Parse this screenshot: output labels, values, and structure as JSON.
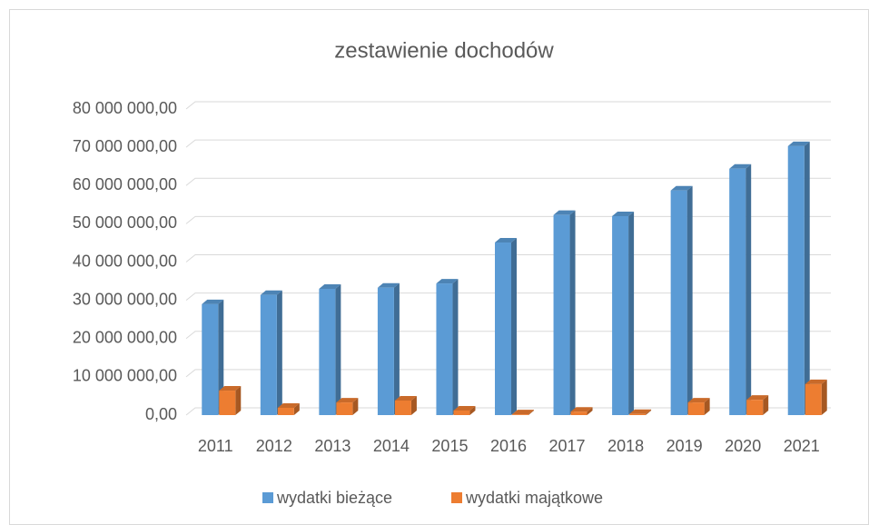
{
  "chart_data": {
    "type": "bar3d",
    "title": "zestawienie dochodów",
    "categories": [
      "2011",
      "2012",
      "2013",
      "2014",
      "2015",
      "2016",
      "2017",
      "2018",
      "2019",
      "2020",
      "2021"
    ],
    "series": [
      {
        "name": "wydatki bieżące",
        "color": "#5b9bd5",
        "values": [
          29000000,
          31400000,
          33000000,
          33300000,
          34400000,
          45100000,
          52300000,
          52000000,
          58700000,
          64400000,
          70300000
        ]
      },
      {
        "name": "wydatki majątkowe",
        "color": "#ed7d31",
        "values": [
          6400000,
          1900000,
          3300000,
          3800000,
          1200000,
          200000,
          900000,
          300000,
          3300000,
          4000000,
          8100000
        ]
      }
    ],
    "ylim": [
      0,
      80000000
    ],
    "yticks": [
      {
        "value": 0,
        "label": "0,00"
      },
      {
        "value": 10000000,
        "label": "10 000 000,00"
      },
      {
        "value": 20000000,
        "label": "20 000 000,00"
      },
      {
        "value": 30000000,
        "label": "30 000 000,00"
      },
      {
        "value": 40000000,
        "label": "40 000 000,00"
      },
      {
        "value": 50000000,
        "label": "50 000 000,00"
      },
      {
        "value": 60000000,
        "label": "60 000 000,00"
      },
      {
        "value": 70000000,
        "label": "70 000 000,00"
      },
      {
        "value": 80000000,
        "label": "80 000 000,00"
      }
    ],
    "grid": true,
    "legend": "bottom"
  }
}
